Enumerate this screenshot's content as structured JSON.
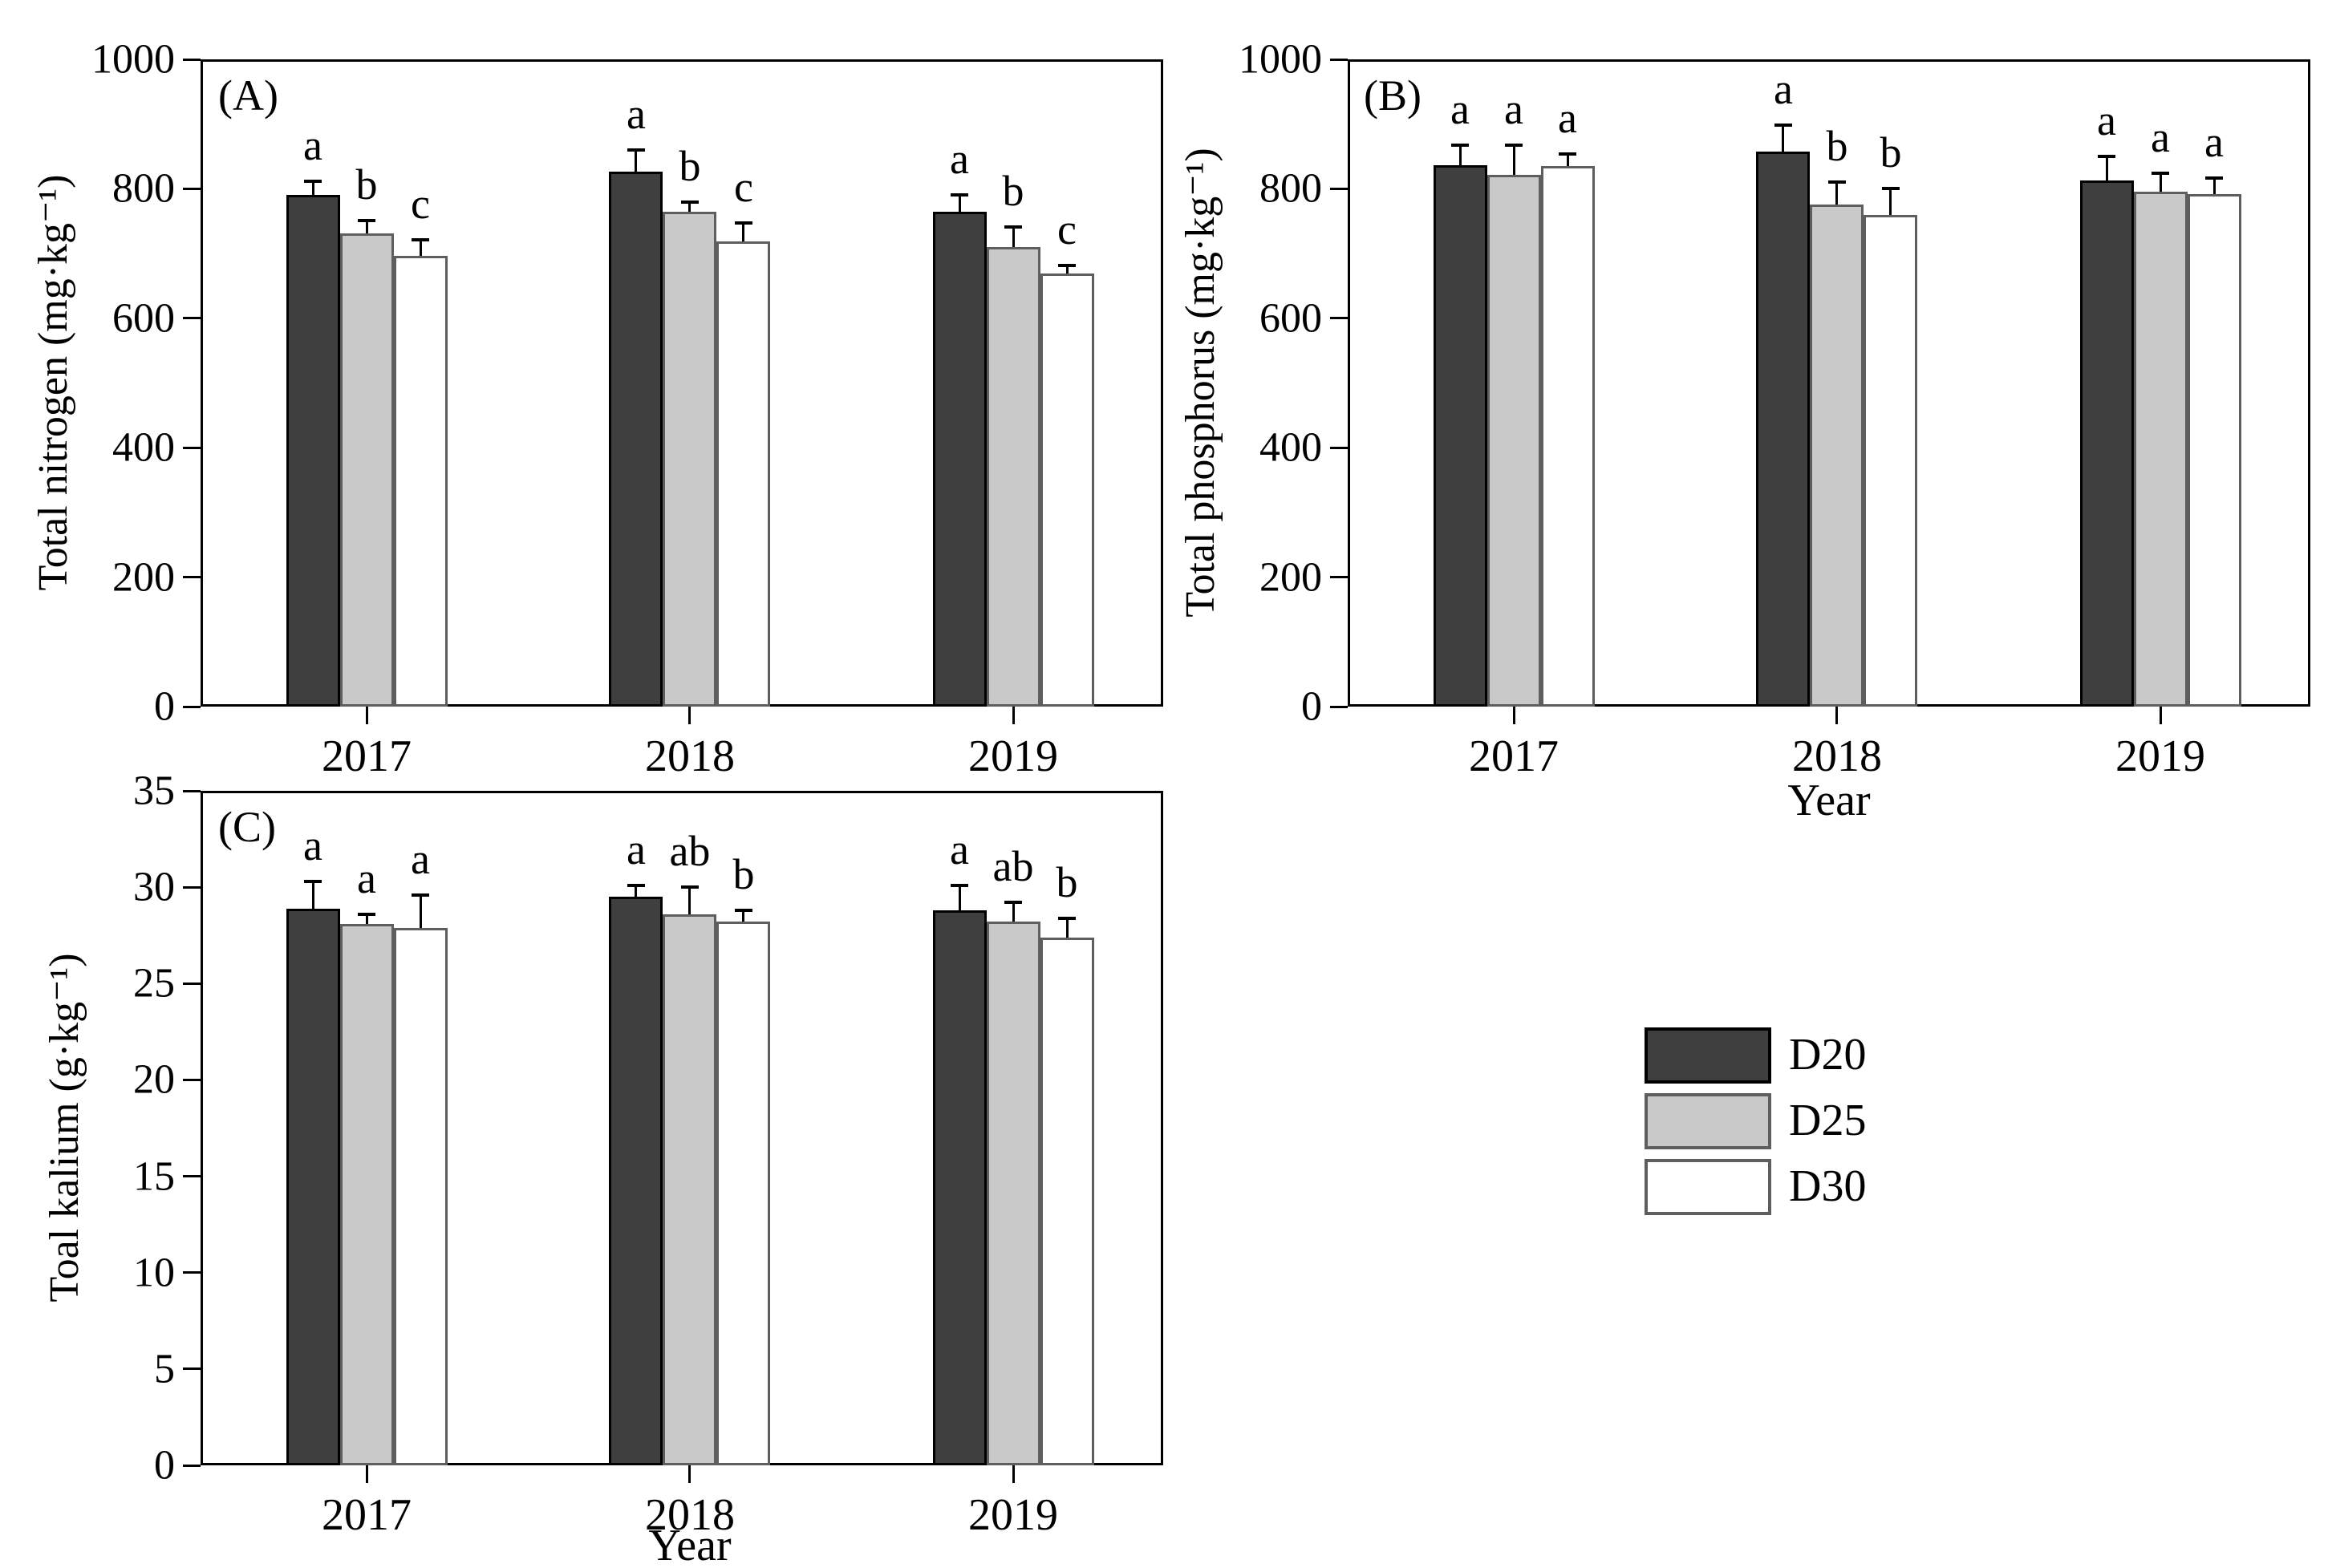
{
  "figure": {
    "background": "#ffffff",
    "error_bar_color": "#000000",
    "frame_color": "#000000",
    "series_styles": [
      {
        "key": "D20",
        "label": "D20",
        "fill": "#3f3f3f",
        "border": "#000000"
      },
      {
        "key": "D25",
        "label": "D25",
        "fill": "#c9c9c9",
        "border": "#5e5e5e"
      },
      {
        "key": "D30",
        "label": "D30",
        "fill": "#ffffff",
        "border": "#5e5e5e"
      }
    ],
    "legend": {
      "items": [
        "D20",
        "D25",
        "D30"
      ]
    }
  },
  "chart_data": [
    {
      "type": "bar",
      "panel_label": "(A)",
      "ylabel": "Total nitrogen (mg·kg⁻¹)",
      "xlabel": "",
      "categories": [
        "2017",
        "2018",
        "2019"
      ],
      "ylim": [
        0,
        1000
      ],
      "yticks": [
        0,
        200,
        400,
        600,
        800,
        1000
      ],
      "grid": false,
      "series": [
        {
          "name": "D20",
          "values": [
            790,
            826,
            765
          ],
          "errors": [
            22,
            34,
            25
          ],
          "letters": [
            "a",
            "a",
            "a"
          ]
        },
        {
          "name": "D25",
          "values": [
            731,
            765,
            710
          ],
          "errors": [
            20,
            15,
            31
          ],
          "letters": [
            "b",
            "b",
            "b"
          ]
        },
        {
          "name": "D30",
          "values": [
            697,
            719,
            669
          ],
          "errors": [
            24,
            28,
            12
          ],
          "letters": [
            "c",
            "c",
            "c"
          ]
        }
      ]
    },
    {
      "type": "bar",
      "panel_label": "(B)",
      "ylabel": "Total phosphorus (mg·kg⁻¹)",
      "xlabel": "Year",
      "categories": [
        "2017",
        "2018",
        "2019"
      ],
      "ylim": [
        0,
        1000
      ],
      "yticks": [
        0,
        200,
        400,
        600,
        800,
        1000
      ],
      "grid": false,
      "series": [
        {
          "name": "D20",
          "values": [
            837,
            858,
            813
          ],
          "errors": [
            30,
            40,
            37
          ],
          "letters": [
            "a",
            "a",
            "a"
          ]
        },
        {
          "name": "D25",
          "values": [
            822,
            776,
            796
          ],
          "errors": [
            45,
            34,
            28
          ],
          "letters": [
            "a",
            "b",
            "a"
          ]
        },
        {
          "name": "D30",
          "values": [
            835,
            760,
            792
          ],
          "errors": [
            19,
            40,
            25
          ],
          "letters": [
            "a",
            "b",
            "a"
          ]
        }
      ]
    },
    {
      "type": "bar",
      "panel_label": "(C)",
      "ylabel": "Toal kalium (g·kg⁻¹)",
      "xlabel": "Year",
      "categories": [
        "2017",
        "2018",
        "2019"
      ],
      "ylim": [
        0,
        35
      ],
      "yticks": [
        0,
        5,
        10,
        15,
        20,
        25,
        30,
        35
      ],
      "grid": false,
      "series": [
        {
          "name": "D20",
          "values": [
            28.9,
            29.5,
            28.8
          ],
          "errors": [
            1.4,
            0.6,
            1.3
          ],
          "letters": [
            "a",
            "a",
            "a"
          ]
        },
        {
          "name": "D25",
          "values": [
            28.1,
            28.6,
            28.2
          ],
          "errors": [
            0.5,
            1.4,
            1.0
          ],
          "letters": [
            "a",
            "ab",
            "ab"
          ]
        },
        {
          "name": "D30",
          "values": [
            27.9,
            28.2,
            27.4
          ],
          "errors": [
            1.7,
            0.6,
            1.0
          ],
          "letters": [
            "a",
            "b",
            "b"
          ]
        }
      ]
    }
  ]
}
